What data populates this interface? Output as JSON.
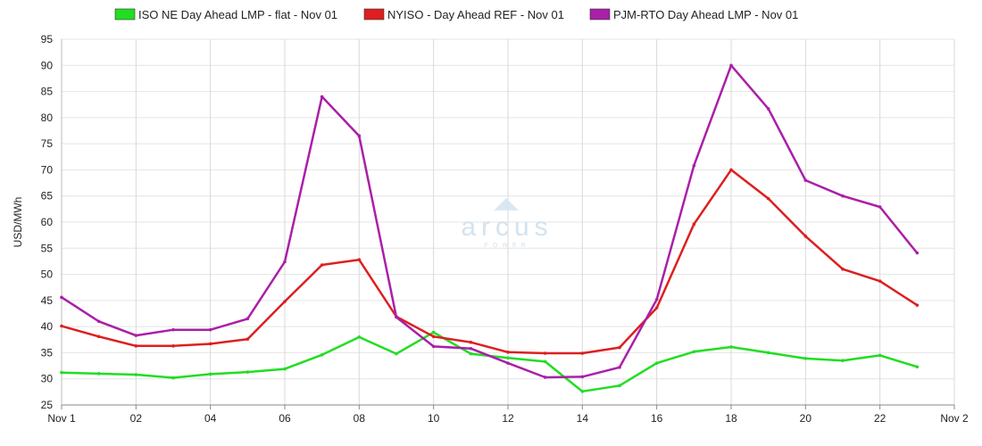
{
  "chart_data": {
    "type": "line",
    "x_hours": [
      0,
      1,
      2,
      3,
      4,
      5,
      6,
      7,
      8,
      9,
      10,
      11,
      12,
      13,
      14,
      15,
      16,
      17,
      18,
      19,
      20,
      21,
      22,
      23
    ],
    "x_tick_labels": [
      "Nov 1",
      "02",
      "04",
      "06",
      "08",
      "10",
      "12",
      "14",
      "16",
      "18",
      "20",
      "22",
      "Nov 2"
    ],
    "xlim": [
      0,
      24
    ],
    "ylabel": "USD/MWh",
    "ylim": [
      25,
      95
    ],
    "y_ticks": [
      25,
      30,
      35,
      40,
      45,
      50,
      55,
      60,
      65,
      70,
      75,
      80,
      85,
      90,
      95
    ],
    "grid": true,
    "legend_position": "top",
    "series": [
      {
        "name": "ISO NE Day Ahead LMP - flat - Nov 01",
        "color": "#22dd22",
        "values": [
          31.2,
          31.0,
          30.8,
          30.2,
          30.9,
          31.3,
          31.9,
          34.6,
          38.0,
          34.8,
          38.9,
          34.8,
          34.0,
          33.3,
          27.6,
          28.7,
          33.0,
          35.2,
          36.1,
          35.0,
          33.9,
          33.5,
          34.5,
          32.3
        ]
      },
      {
        "name": "NYISO - Day Ahead REF - Nov 01",
        "color": "#dd1f1f",
        "values": [
          40.1,
          38.1,
          36.3,
          36.3,
          36.7,
          37.6,
          44.8,
          51.8,
          52.8,
          41.9,
          38.1,
          37.0,
          35.1,
          34.9,
          34.9,
          36.0,
          43.6,
          59.6,
          70.0,
          64.5,
          57.3,
          51.0,
          48.7,
          44.1
        ]
      },
      {
        "name": "PJM-RTO Day Ahead LMP - Nov 01",
        "color": "#aa1fa8",
        "values": [
          45.6,
          41.0,
          38.3,
          39.4,
          39.4,
          41.5,
          52.4,
          84.0,
          76.5,
          41.8,
          36.2,
          35.8,
          33.0,
          30.3,
          30.4,
          32.2,
          45.2,
          70.8,
          90.0,
          81.7,
          68.0,
          65.0,
          62.9,
          54.1
        ]
      }
    ]
  },
  "watermark": {
    "brand": "arcus",
    "tagline": "POWER"
  }
}
